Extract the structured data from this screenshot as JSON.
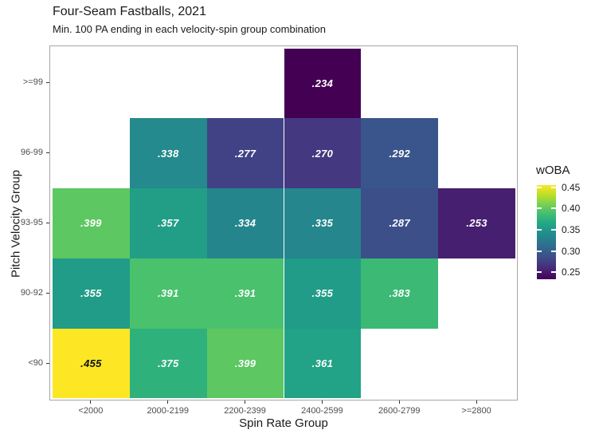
{
  "title": "Four-Seam Fastballs, 2021",
  "subtitle": "Min. 100 PA ending in each velocity-spin group combination",
  "chart_data": {
    "type": "heatmap",
    "title": "Four-Seam Fastballs, 2021",
    "subtitle": "Min. 100 PA ending in each velocity-spin group combination",
    "xlabel": "Spin Rate Group",
    "ylabel": "Pitch Velocity Group",
    "x_categories": [
      "<2000",
      "2000-2199",
      "2200-2399",
      "2400-2599",
      "2600-2799",
      ">=2800"
    ],
    "y_categories_top_to_bottom": [
      ">=99",
      "96-99",
      "93-95",
      "90-92",
      "<90"
    ],
    "cells": [
      {
        "row": ">=99",
        "col": "2400-2599",
        "value": 0.234,
        "label": ".234"
      },
      {
        "row": "96-99",
        "col": "2000-2199",
        "value": 0.338,
        "label": ".338"
      },
      {
        "row": "96-99",
        "col": "2200-2399",
        "value": 0.277,
        "label": ".277"
      },
      {
        "row": "96-99",
        "col": "2400-2599",
        "value": 0.27,
        "label": ".270"
      },
      {
        "row": "96-99",
        "col": "2600-2799",
        "value": 0.292,
        "label": ".292"
      },
      {
        "row": "93-95",
        "col": "<2000",
        "value": 0.399,
        "label": ".399"
      },
      {
        "row": "93-95",
        "col": "2000-2199",
        "value": 0.357,
        "label": ".357"
      },
      {
        "row": "93-95",
        "col": "2200-2399",
        "value": 0.334,
        "label": ".334"
      },
      {
        "row": "93-95",
        "col": "2400-2599",
        "value": 0.335,
        "label": ".335"
      },
      {
        "row": "93-95",
        "col": "2600-2799",
        "value": 0.287,
        "label": ".287"
      },
      {
        "row": "93-95",
        "col": ">=2800",
        "value": 0.253,
        "label": ".253"
      },
      {
        "row": "90-92",
        "col": "<2000",
        "value": 0.355,
        "label": ".355"
      },
      {
        "row": "90-92",
        "col": "2000-2199",
        "value": 0.391,
        "label": ".391"
      },
      {
        "row": "90-92",
        "col": "2200-2399",
        "value": 0.391,
        "label": ".391"
      },
      {
        "row": "90-92",
        "col": "2400-2599",
        "value": 0.355,
        "label": ".355"
      },
      {
        "row": "90-92",
        "col": "2600-2799",
        "value": 0.383,
        "label": ".383"
      },
      {
        "row": "<90",
        "col": "<2000",
        "value": 0.455,
        "label": ".455"
      },
      {
        "row": "<90",
        "col": "2000-2199",
        "value": 0.375,
        "label": ".375"
      },
      {
        "row": "<90",
        "col": "2200-2399",
        "value": 0.399,
        "label": ".399"
      },
      {
        "row": "<90",
        "col": "2400-2599",
        "value": 0.361,
        "label": ".361"
      }
    ],
    "legend": {
      "title": "wOBA",
      "tick_labels": [
        "0.45",
        "0.40",
        "0.35",
        "0.30",
        "0.25"
      ],
      "tick_values": [
        0.45,
        0.4,
        0.35,
        0.3,
        0.25
      ],
      "domain": [
        0.234,
        0.455
      ],
      "colormap": "viridis",
      "position": "right"
    },
    "colors": {
      "viridis_low": "#440154",
      "viridis_high": "#fde725",
      "cell_label_light": "#ffffff",
      "cell_label_dark": "#111111",
      "axis_text": "#4d4d4d",
      "panel_border": "#a6a6a6"
    },
    "grid": false
  }
}
